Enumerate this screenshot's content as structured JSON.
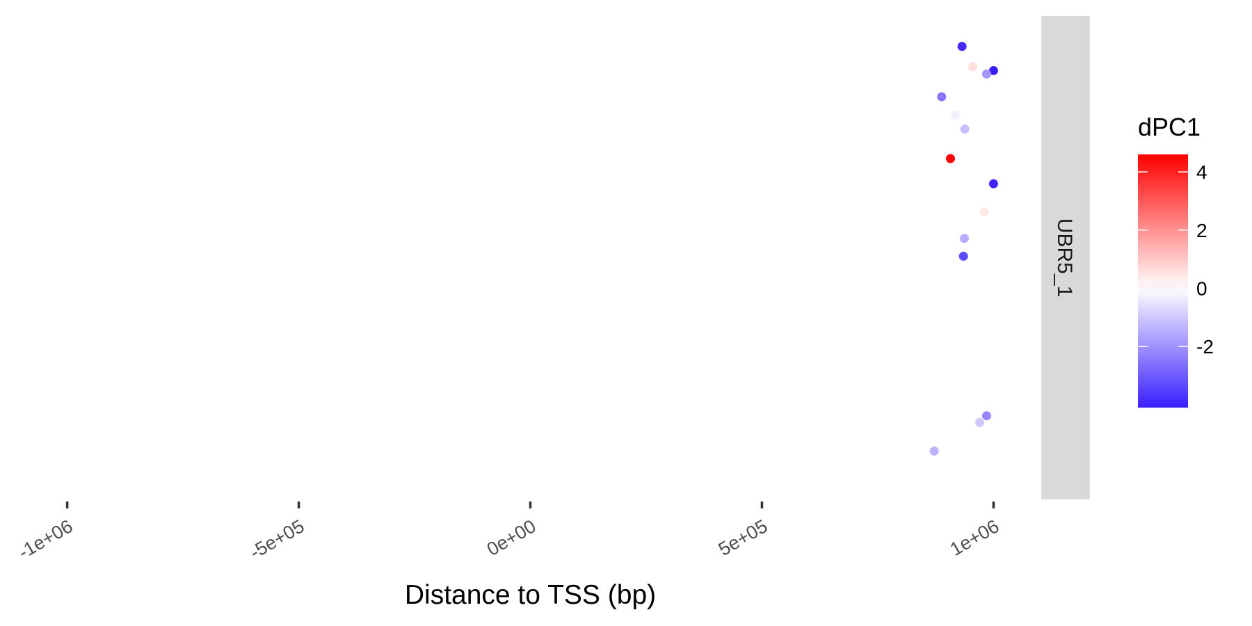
{
  "chart_data": {
    "type": "scatter",
    "title": "",
    "xlabel": "Distance to TSS (bp)",
    "ylabel": "",
    "xlim": [
      -1100000,
      1100000
    ],
    "x_ticks": [
      -1000000,
      -500000,
      0,
      500000,
      1000000
    ],
    "x_tick_labels": [
      "-1e+06",
      "-5e+05",
      "0e+00",
      "5e+05",
      "1e+06"
    ],
    "y_axis_shown": false,
    "grid": false,
    "facet_label": "UBR5_1",
    "color_legend": {
      "title": "dPC1",
      "position": "right",
      "low_color": "#3a1fff",
      "mid_color": "#ffffff",
      "high_color": "#ff0000",
      "range": [
        -4.1,
        4.6
      ],
      "ticks": [
        4,
        2,
        0,
        -2
      ],
      "tick_labels": [
        "4",
        "2",
        "0",
        "-2"
      ]
    },
    "points": [
      {
        "x": 932000,
        "y": 0.937,
        "dPC1": -3.9
      },
      {
        "x": 955000,
        "y": 0.895,
        "dPC1": 0.6
      },
      {
        "x": 1000000,
        "y": 0.887,
        "dPC1": -4.1
      },
      {
        "x": 985000,
        "y": 0.88,
        "dPC1": -1.9
      },
      {
        "x": 888000,
        "y": 0.833,
        "dPC1": -2.5
      },
      {
        "x": 918000,
        "y": 0.795,
        "dPC1": -0.3
      },
      {
        "x": 938000,
        "y": 0.766,
        "dPC1": -1.2
      },
      {
        "x": 907000,
        "y": 0.705,
        "dPC1": 4.6
      },
      {
        "x": 1000000,
        "y": 0.653,
        "dPC1": -4.0
      },
      {
        "x": 980000,
        "y": 0.595,
        "dPC1": 0.4
      },
      {
        "x": 937000,
        "y": 0.54,
        "dPC1": -1.5
      },
      {
        "x": 935000,
        "y": 0.503,
        "dPC1": -3.3
      },
      {
        "x": 985000,
        "y": 0.173,
        "dPC1": -2.2
      },
      {
        "x": 970000,
        "y": 0.159,
        "dPC1": -1.0
      },
      {
        "x": 872000,
        "y": 0.1,
        "dPC1": -1.4
      }
    ]
  }
}
